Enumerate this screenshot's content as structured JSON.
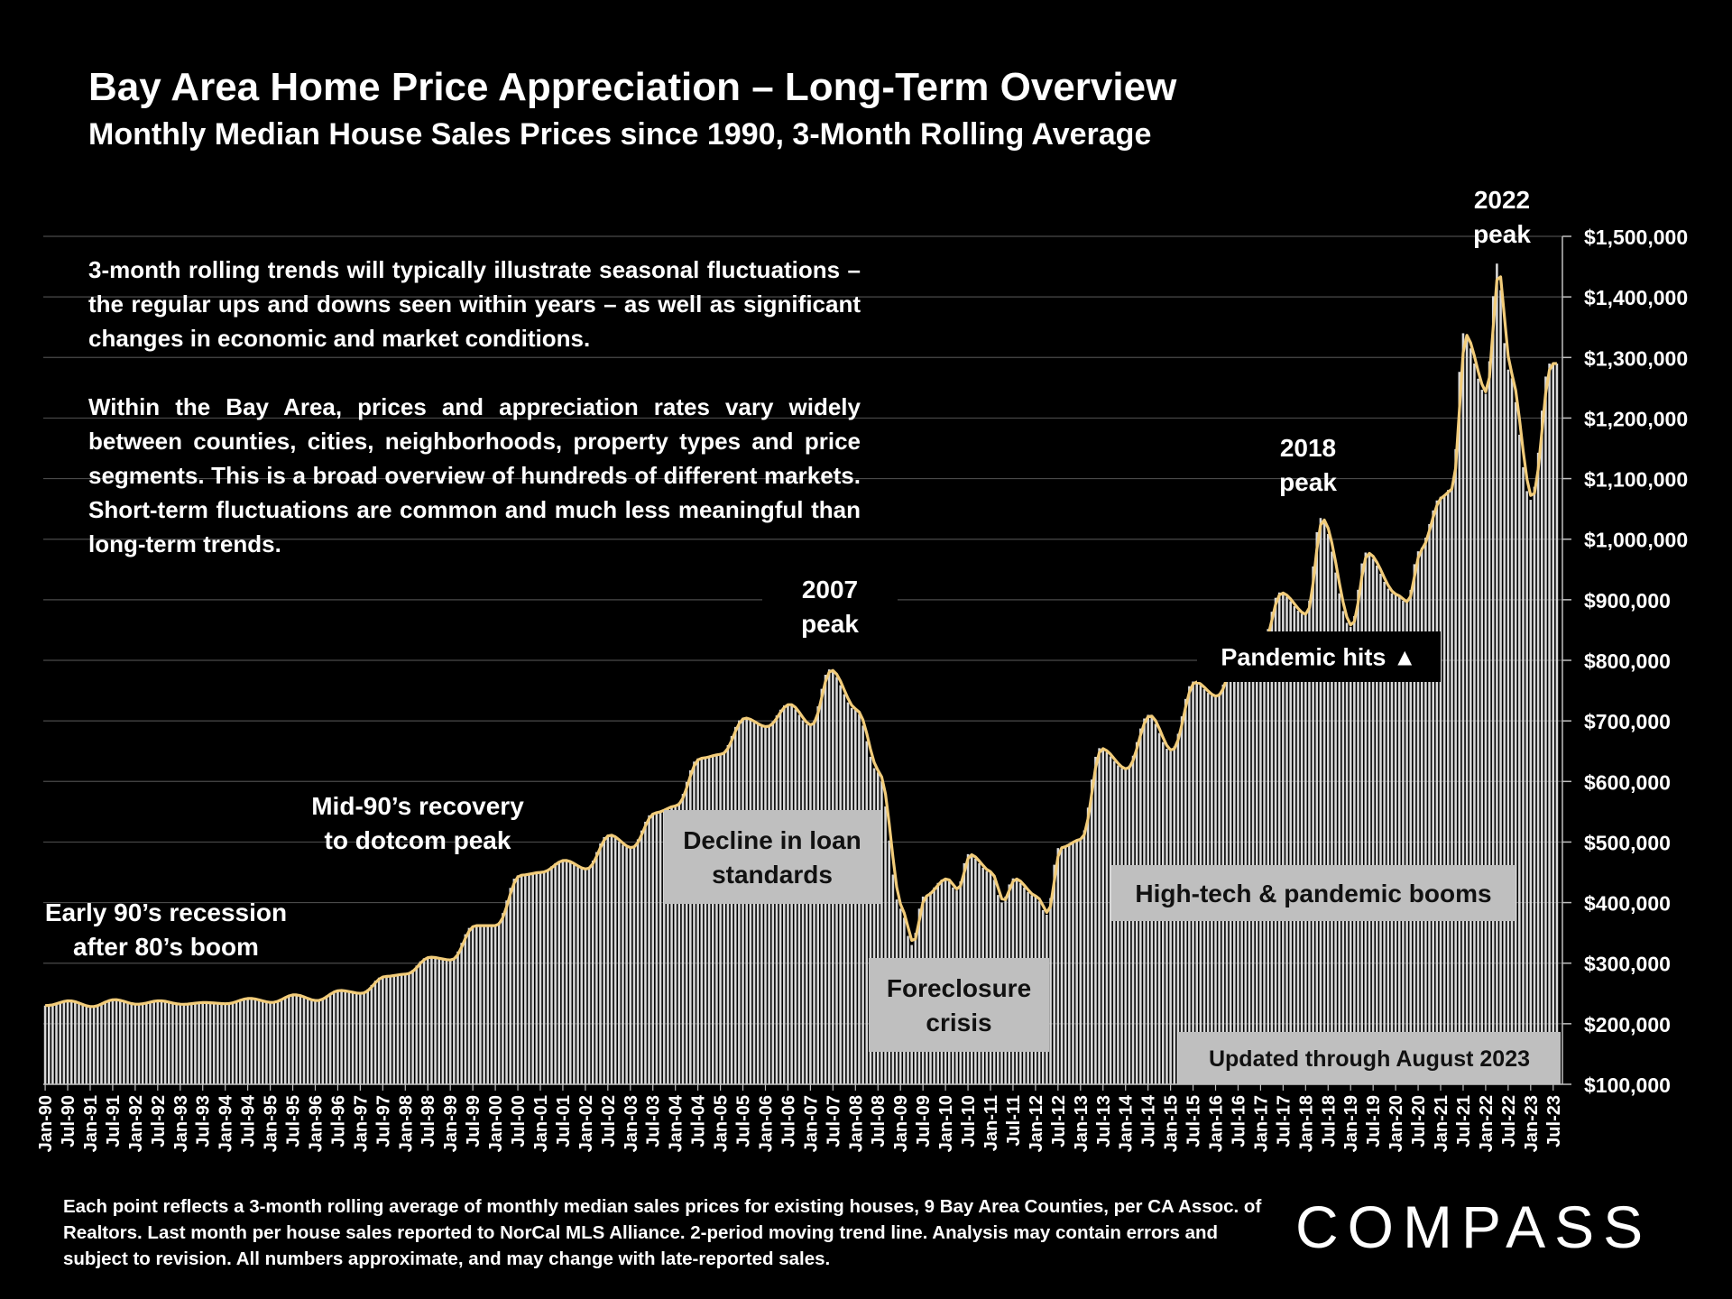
{
  "title": "Bay Area Home Price Appreciation – Long-Term Overview",
  "subtitle": "Monthly Median House Sales Prices since 1990, 3-Month Rolling Average",
  "description": [
    "3-month rolling trends will typically illustrate seasonal fluctuations – the regular ups and downs seen within years – as well as significant changes in economic and market conditions.",
    "Within the Bay Area, prices and appreciation rates vary widely between counties, cities, neighborhoods, property types and price segments. This is a broad overview of hundreds of different markets. Short-term fluctuations are common and much less meaningful than long-term trends."
  ],
  "footnote": "Each point reflects a 3-month rolling average of monthly median sales prices for existing houses, 9 Bay Area Counties, per CA Assoc. of Realtors. Last month per house sales reported to NorCal MLS Alliance. 2-period moving trend line. Analysis may contain errors and subject to revision. All numbers approximate, and may change with late-reported sales.",
  "logo_text": "COMPASS",
  "colors": {
    "background": "#000000",
    "bars": "#d9d9d9",
    "trend_line": "#f2cc7a",
    "annotation_box": "#bfbfbf",
    "gridline": "#4a4a4a"
  },
  "chart_data": {
    "type": "bar",
    "x_start": "Jan-90",
    "x_end": "Aug-23",
    "x_tick_labels": [
      "Jan-90",
      "Jul-90",
      "Jan-91",
      "Jul-91",
      "Jan-92",
      "Jul-92",
      "Jan-93",
      "Jul-93",
      "Jan-94",
      "Jul-94",
      "Jan-95",
      "Jul-95",
      "Jan-96",
      "Jul-96",
      "Jan-97",
      "Jul-97",
      "Jan-98",
      "Jul-98",
      "Jan-99",
      "Jul-99",
      "Jan-00",
      "Jul-00",
      "Jan-01",
      "Jul-01",
      "Jan-02",
      "Jul-02",
      "Jan-03",
      "Jul-03",
      "Jan-04",
      "Jul-04",
      "Jan-05",
      "Jul-05",
      "Jan-06",
      "Jul-06",
      "Jan-07",
      "Jul-07",
      "Jan-08",
      "Jul-08",
      "Jan-09",
      "Jul-09",
      "Jan-10",
      "Jul-10",
      "Jan-11",
      "Jul-11",
      "Jan-12",
      "Jul-12",
      "Jan-13",
      "Jul-13",
      "Jan-14",
      "Jul-14",
      "Jan-15",
      "Jul-15",
      "Jan-16",
      "Jul-16",
      "Jan-17",
      "Jul-17",
      "Jan-18",
      "Jul-18",
      "Jan-19",
      "Jul-19",
      "Jan-20",
      "Jul-20",
      "Jan-21",
      "Jul-21",
      "Jan-22",
      "Jul-22",
      "Jan-23",
      "Jul-23"
    ],
    "y_tick_labels": [
      "$100,000",
      "$200,000",
      "$300,000",
      "$400,000",
      "$500,000",
      "$600,000",
      "$700,000",
      "$800,000",
      "$900,000",
      "$1,000,000",
      "$1,100,000",
      "$1,200,000",
      "$1,300,000",
      "$1,400,000",
      "$1,500,000"
    ],
    "ylim": [
      100000,
      1500000
    ],
    "y_axis_position": "right",
    "grid": true,
    "trend_line": "2-period moving average",
    "anchors": [
      [
        "Jan-90",
        230000
      ],
      [
        "Jul-90",
        238000
      ],
      [
        "Jan-91",
        228000
      ],
      [
        "Jul-91",
        240000
      ],
      [
        "Jan-92",
        232000
      ],
      [
        "Jul-92",
        238000
      ],
      [
        "Jan-93",
        232000
      ],
      [
        "Jul-93",
        235000
      ],
      [
        "Jan-94",
        233000
      ],
      [
        "Jul-94",
        242000
      ],
      [
        "Jan-95",
        235000
      ],
      [
        "Jul-95",
        248000
      ],
      [
        "Jan-96",
        238000
      ],
      [
        "Jul-96",
        255000
      ],
      [
        "Jan-97",
        250000
      ],
      [
        "Jul-97",
        278000
      ],
      [
        "Jan-98",
        282000
      ],
      [
        "Jul-98",
        310000
      ],
      [
        "Jan-99",
        305000
      ],
      [
        "Jul-99",
        362000
      ],
      [
        "Jan-00",
        362000
      ],
      [
        "Jul-00",
        445000
      ],
      [
        "Jan-01",
        450000
      ],
      [
        "Jul-01",
        470000
      ],
      [
        "Jan-02",
        455000
      ],
      [
        "Jul-02",
        512000
      ],
      [
        "Jan-03",
        490000
      ],
      [
        "Jul-03",
        548000
      ],
      [
        "Jan-04",
        560000
      ],
      [
        "Jul-04",
        638000
      ],
      [
        "Jan-05",
        645000
      ],
      [
        "Jul-05",
        705000
      ],
      [
        "Jan-06",
        690000
      ],
      [
        "Jul-06",
        728000
      ],
      [
        "Jan-07",
        692000
      ],
      [
        "Jun-07",
        785000
      ],
      [
        "Jan-08",
        718000
      ],
      [
        "Jul-08",
        615000
      ],
      [
        "Jan-09",
        390000
      ],
      [
        "Apr-09",
        330000
      ],
      [
        "Jul-09",
        410000
      ],
      [
        "Jan-10",
        440000
      ],
      [
        "Apr-10",
        420000
      ],
      [
        "Jul-10",
        480000
      ],
      [
        "Jan-11",
        450000
      ],
      [
        "Apr-11",
        400000
      ],
      [
        "Jul-11",
        440000
      ],
      [
        "Jan-12",
        410000
      ],
      [
        "Apr-12",
        380000
      ],
      [
        "Jul-12",
        490000
      ],
      [
        "Jan-13",
        505000
      ],
      [
        "Jun-13",
        655000
      ],
      [
        "Jan-14",
        620000
      ],
      [
        "Jul-14",
        710000
      ],
      [
        "Jan-15",
        650000
      ],
      [
        "Jul-15",
        765000
      ],
      [
        "Jan-16",
        740000
      ],
      [
        "Jul-16",
        820000
      ],
      [
        "Jan-17",
        820000
      ],
      [
        "Jun-17",
        912000
      ],
      [
        "Jan-18",
        875000
      ],
      [
        "May-18",
        1035000
      ],
      [
        "Jan-19",
        855000
      ],
      [
        "May-19",
        978000
      ],
      [
        "Jan-20",
        908000
      ],
      [
        "Apr-20",
        895000
      ],
      [
        "Jul-20",
        980000
      ],
      [
        "Jan-21",
        1070000
      ],
      [
        "Apr-21",
        1085000
      ],
      [
        "Jul-21",
        1340000
      ],
      [
        "Jan-22",
        1240000
      ],
      [
        "Apr-22",
        1455000
      ],
      [
        "Jul-22",
        1280000
      ],
      [
        "Jan-23",
        1065000
      ],
      [
        "Jun-23",
        1290000
      ],
      [
        "Aug-23",
        1290000
      ]
    ],
    "annotations": [
      {
        "id": "early90s",
        "text": [
          "Early 90’s recession",
          "after 80’s boom"
        ],
        "boxed": false
      },
      {
        "id": "mid90s",
        "text": [
          "Mid-90’s recovery",
          "to dotcom peak"
        ],
        "boxed": false
      },
      {
        "id": "peak2007",
        "text": [
          "2007",
          "peak"
        ],
        "boxed": false
      },
      {
        "id": "decline",
        "text": [
          "Decline in loan",
          "standards"
        ],
        "boxed": true
      },
      {
        "id": "foreclosure",
        "text": [
          "Foreclosure",
          "crisis"
        ],
        "boxed": true
      },
      {
        "id": "hightech",
        "text": [
          "High-tech & pandemic booms"
        ],
        "boxed": true
      },
      {
        "id": "peak2018",
        "text": [
          "2018",
          "peak"
        ],
        "boxed": false
      },
      {
        "id": "pandemic",
        "text": [
          "Pandemic hits ▲"
        ],
        "boxed": "dark"
      },
      {
        "id": "peak2022",
        "text": [
          "2022",
          "peak"
        ],
        "boxed": false
      },
      {
        "id": "updated",
        "text": [
          "Updated through August 2023"
        ],
        "boxed": true
      }
    ]
  }
}
